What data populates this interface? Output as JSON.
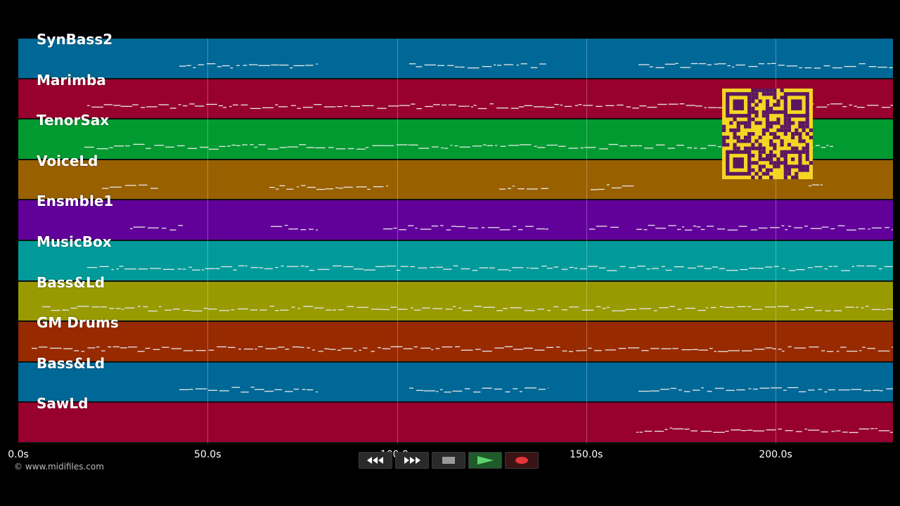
{
  "tracks": [
    {
      "name": "SynBass2",
      "color": "#006896"
    },
    {
      "name": "Marimba",
      "color": "#98002e"
    },
    {
      "name": "TenorSax",
      "color": "#009a30"
    },
    {
      "name": "VoiceLd",
      "color": "#996000"
    },
    {
      "name": "Ensmble1",
      "color": "#62009a"
    },
    {
      "name": "MusicBox",
      "color": "#009a9a"
    },
    {
      "name": "Bass&Ld",
      "color": "#989a00"
    },
    {
      "name": "GM Drums",
      "color": "#982a00"
    },
    {
      "name": "Bass&Ld",
      "color": "#006896"
    },
    {
      "name": "SawLd",
      "color": "#98002e"
    }
  ],
  "timeline": {
    "ticks": [
      "0.0s",
      "50.0s",
      "100.0s",
      "150.0s",
      "200.0s"
    ],
    "tick_seconds": [
      0,
      50,
      100,
      150,
      200
    ],
    "max_seconds": 231
  },
  "copyright": "© www.midifiles.com",
  "transport": {
    "buttons": [
      "rewind",
      "fast-forward",
      "stop",
      "play",
      "record"
    ]
  },
  "qr_color": "#5a1760",
  "qr_bg": "#f5d524"
}
